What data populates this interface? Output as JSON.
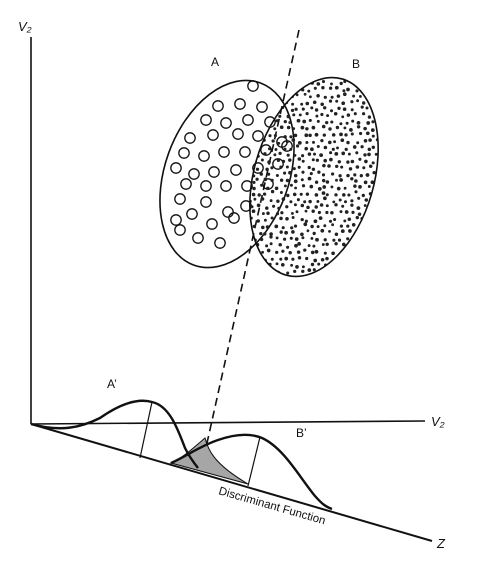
{
  "axes": {
    "vertical_label": "V₂",
    "horizontal_label": "V₂",
    "discriminant_axis_label": "Z"
  },
  "groups": {
    "a_label": "A",
    "b_label": "B",
    "a_prime_label": "A’",
    "b_prime_label": "B’"
  },
  "discriminant_function_label": "Discriminant Function",
  "colors": {
    "stroke": "#111111",
    "overlap_fill": "#a6a6a6",
    "dot": "#222222"
  }
}
